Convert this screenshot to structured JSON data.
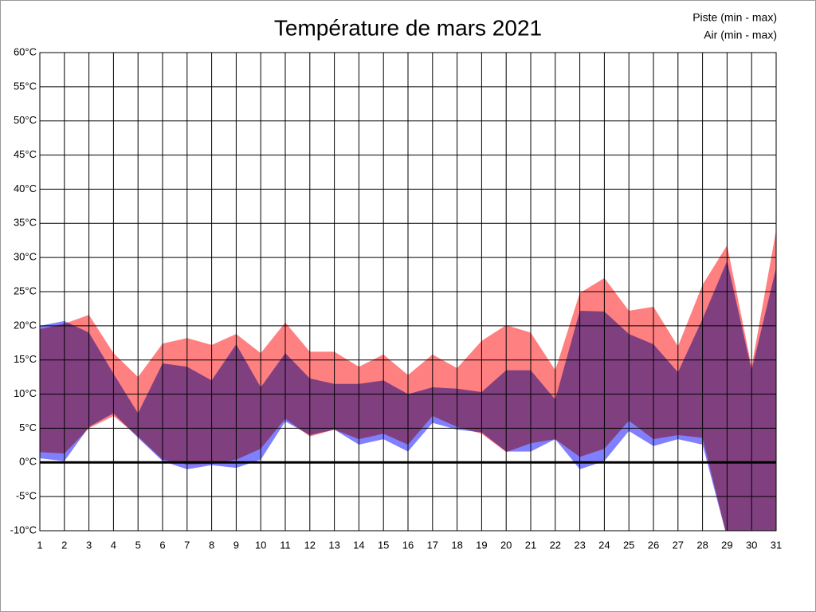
{
  "chart_data": {
    "type": "range-area",
    "title": "Température de mars 2021",
    "x": [
      1,
      2,
      3,
      4,
      5,
      6,
      7,
      8,
      9,
      10,
      11,
      12,
      13,
      14,
      15,
      16,
      17,
      18,
      19,
      20,
      21,
      22,
      23,
      24,
      25,
      26,
      27,
      28,
      29,
      30,
      31
    ],
    "series": [
      {
        "name": "Piste (min - max)",
        "color": "#ff8080",
        "max": [
          19.5,
          20.3,
          21.6,
          16,
          12.5,
          17.4,
          18.2,
          17.2,
          18.8,
          16,
          20.5,
          16.2,
          16.2,
          14,
          15.8,
          12.8,
          15.8,
          13.8,
          17.8,
          20.1,
          19,
          13.5,
          24.8,
          27,
          22.2,
          22.8,
          17,
          26,
          31.8,
          14,
          34
        ],
        "min": [
          1.5,
          1.3,
          5,
          6.8,
          3.8,
          0.4,
          -0.3,
          -0.2,
          0.4,
          2,
          6.4,
          3.8,
          4.8,
          3.4,
          4.2,
          2.6,
          6.8,
          5.2,
          4.2,
          1.5,
          2.8,
          3.4,
          0.8,
          2,
          6.1,
          3.4,
          4,
          3.6,
          -11,
          -11,
          -11
        ]
      },
      {
        "name": "Air (min - max)",
        "color": "#8080ff",
        "max": [
          20,
          20.7,
          19,
          13,
          7.2,
          14.5,
          14,
          12,
          17.3,
          11,
          16,
          12.3,
          11.5,
          11.5,
          12,
          10,
          11,
          10.8,
          10.3,
          13.5,
          13.5,
          9.2,
          22.2,
          22.1,
          18.8,
          17.3,
          13.2,
          21,
          29.5,
          13.5,
          28.5
        ],
        "min": [
          0.6,
          0.2,
          5.2,
          7.2,
          3.6,
          0.2,
          -1,
          -0.4,
          -0.8,
          0.4,
          6,
          4,
          4.8,
          2.6,
          3.4,
          1.6,
          5.8,
          4.8,
          4.4,
          1.6,
          1.6,
          3.4,
          -1,
          0.2,
          4.6,
          2.4,
          3.4,
          2.6,
          -11,
          -11,
          -11
        ]
      }
    ],
    "xlim": [
      1,
      31
    ],
    "xticks": [
      1,
      2,
      3,
      4,
      5,
      6,
      7,
      8,
      9,
      10,
      11,
      12,
      13,
      14,
      15,
      16,
      17,
      18,
      19,
      20,
      21,
      22,
      23,
      24,
      25,
      26,
      27,
      28,
      29,
      30,
      31
    ],
    "ylim": [
      -10,
      60
    ],
    "yticks": [
      {
        "value": -10,
        "label": "-10°C"
      },
      {
        "value": -5,
        "label": "-5°C"
      },
      {
        "value": 0,
        "label": "0°C"
      },
      {
        "value": 5,
        "label": "5°C"
      },
      {
        "value": 10,
        "label": "10°C"
      },
      {
        "value": 15,
        "label": "15°C"
      },
      {
        "value": 20,
        "label": "20°C"
      },
      {
        "value": 25,
        "label": "25°C"
      },
      {
        "value": 30,
        "label": "30°C"
      },
      {
        "value": 35,
        "label": "35°C"
      },
      {
        "value": 40,
        "label": "40°C"
      },
      {
        "value": 45,
        "label": "45°C"
      },
      {
        "value": 50,
        "label": "50°C"
      },
      {
        "value": 55,
        "label": "55°C"
      },
      {
        "value": 60,
        "label": "60°C"
      }
    ],
    "grid": true,
    "legend": "top-right"
  }
}
